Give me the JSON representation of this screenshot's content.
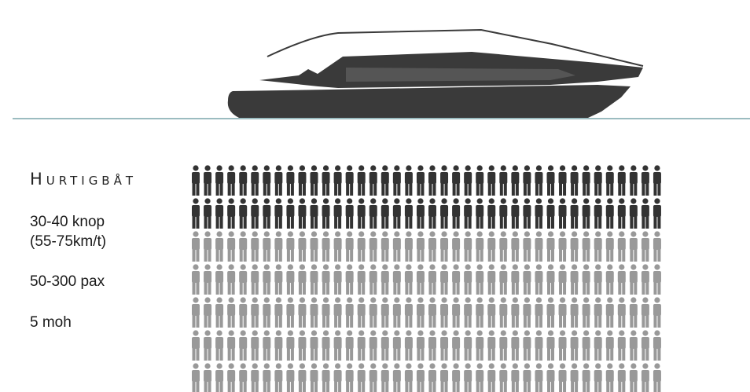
{
  "title": "Hurtigbåt",
  "specs": [
    "30-40 knop",
    "(55-75km/t)",
    "50-300 pax",
    "5 moh"
  ]
}
